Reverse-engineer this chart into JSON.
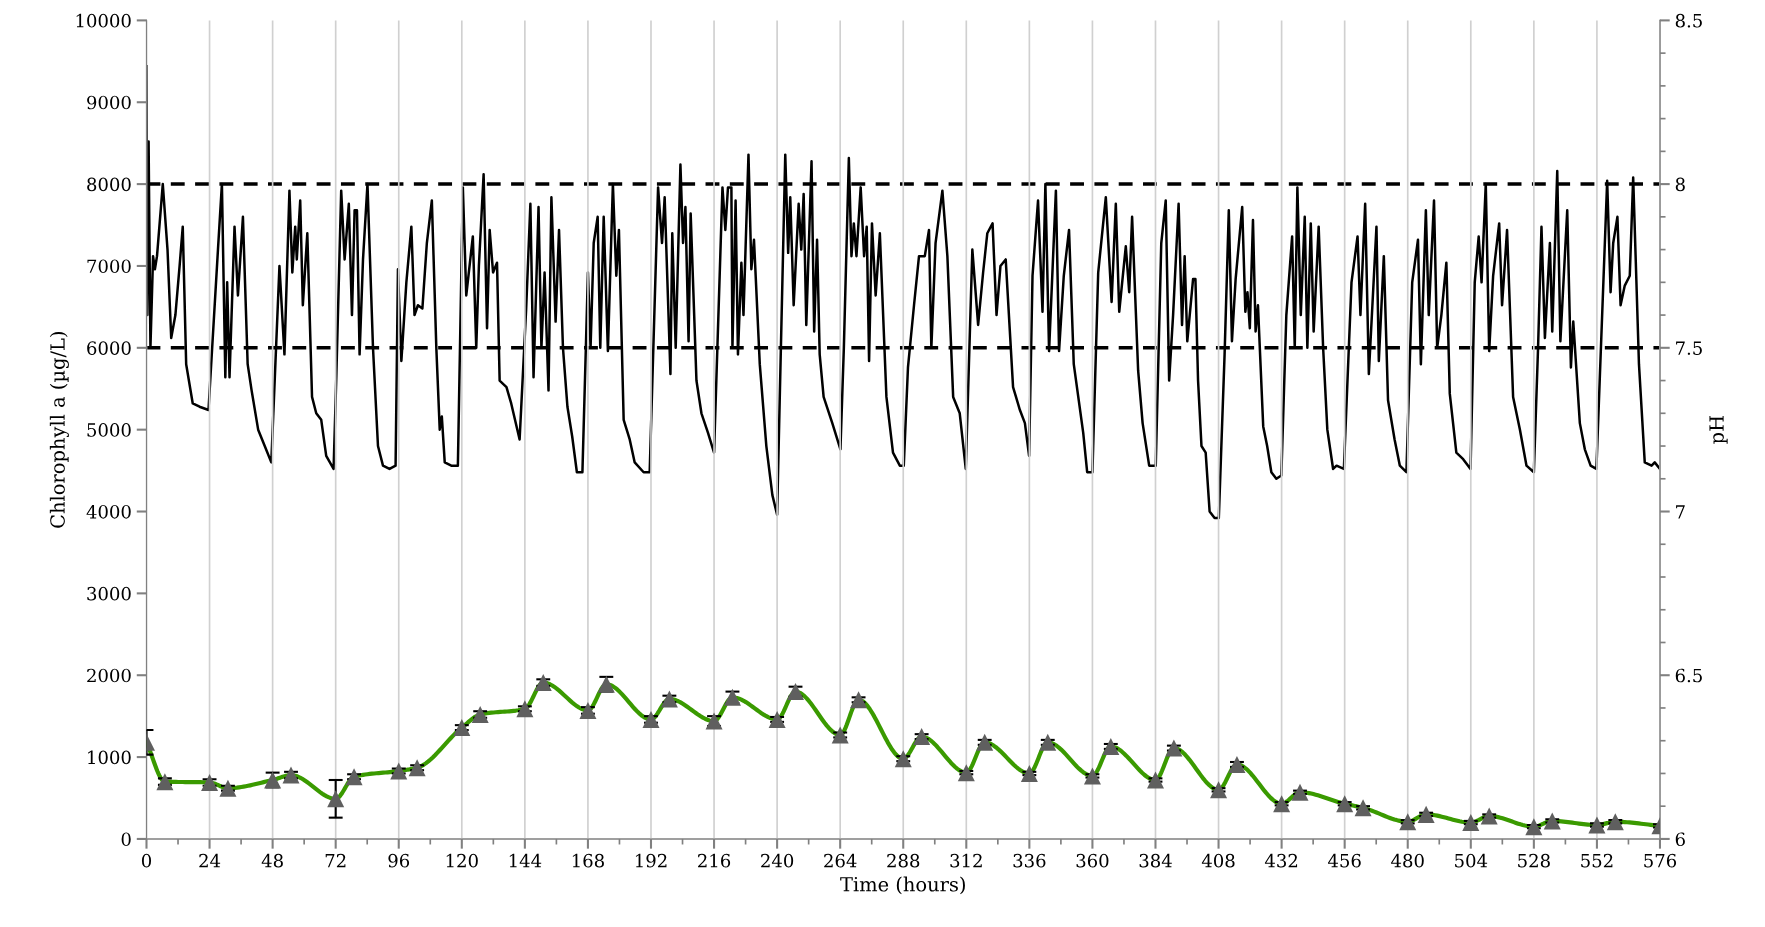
{
  "chart_data": {
    "type": "line",
    "xlabel": "Time (hours)",
    "ylabel": "Chlorophyll a (µg/L)",
    "y2label": "pH",
    "xlim": [
      0,
      576
    ],
    "xticks": [
      0,
      24,
      48,
      72,
      96,
      120,
      144,
      168,
      192,
      216,
      240,
      264,
      288,
      312,
      336,
      360,
      384,
      408,
      432,
      456,
      480,
      504,
      528,
      552,
      576
    ],
    "ylim": [
      0,
      10000
    ],
    "yticks": [
      0,
      1000,
      2000,
      3000,
      4000,
      5000,
      6000,
      7000,
      8000,
      9000,
      10000
    ],
    "y2lim": [
      6,
      8.5
    ],
    "y2ticks": [
      6,
      6.5,
      7,
      7.5,
      8,
      8.5
    ],
    "grid": "x",
    "ref_lines": [
      {
        "axis": "y2",
        "value": 7.5,
        "color": "#000000",
        "line_style": "dashed"
      },
      {
        "axis": "y2",
        "value": 8,
        "color": "#000000",
        "line_style": "dashed"
      }
    ],
    "series": [
      {
        "axis": "y",
        "color": "#3a9a00",
        "marker": "triangle",
        "line_style": "solid",
        "x": [
          0,
          7,
          24,
          31,
          48,
          55,
          72,
          79,
          96,
          103,
          120,
          127,
          144,
          151,
          168,
          175,
          192,
          199,
          216,
          223,
          240,
          247,
          264,
          271,
          288,
          295,
          312,
          319,
          336,
          343,
          360,
          367,
          384,
          391,
          408,
          415,
          432,
          439,
          456,
          463,
          480,
          487,
          504,
          511,
          528,
          535,
          552,
          559,
          576
        ],
        "values": [
          1180,
          700,
          690,
          620,
          720,
          780,
          490,
          760,
          830,
          870,
          1360,
          1520,
          1590,
          1910,
          1570,
          1890,
          1460,
          1710,
          1440,
          1730,
          1460,
          1800,
          1270,
          1700,
          980,
          1250,
          810,
          1180,
          800,
          1180,
          770,
          1130,
          720,
          1110,
          600,
          910,
          430,
          570,
          430,
          380,
          210,
          300,
          200,
          280,
          150,
          220,
          170,
          210,
          160
        ],
        "errors": [
          150,
          40,
          40,
          30,
          90,
          40,
          230,
          30,
          30,
          30,
          30,
          40,
          30,
          40,
          40,
          90,
          40,
          40,
          60,
          70,
          30,
          60,
          30,
          30,
          30,
          30,
          20,
          30,
          20,
          30,
          20,
          30,
          20,
          30,
          20,
          30,
          20,
          20,
          20,
          20,
          20,
          20,
          20,
          20,
          20,
          20,
          20,
          20,
          20
        ],
        "colors": [
          "#5f5f5f",
          "#5f5f5f",
          "#5f5f5f",
          "#5f5f5f",
          "#5f5f5f",
          "#5f5f5f",
          "#5f5f5f",
          "#5f5f5f",
          "#5f5f5f",
          "#5f5f5f",
          "#5f5f5f",
          "#5f5f5f",
          "#5f5f5f",
          "#5f5f5f",
          "#5f5f5f",
          "#5f5f5f",
          "#5f5f5f",
          "#5f5f5f",
          "#5f5f5f",
          "#5f5f5f",
          "#5f5f5f",
          "#5f5f5f",
          "#5f5f5f",
          "#5f5f5f",
          "#5f5f5f",
          "#5f5f5f",
          "#5f5f5f",
          "#5f5f5f",
          "#5f5f5f",
          "#5f5f5f",
          "#5f5f5f",
          "#5f5f5f",
          "#5f5f5f",
          "#5f5f5f",
          "#5f5f5f",
          "#5f5f5f",
          "#5f5f5f",
          "#5f5f5f",
          "#5f5f5f",
          "#5f5f5f",
          "#5f5f5f",
          "#5f5f5f",
          "#5f5f5f",
          "#5f5f5f",
          "#5f5f5f",
          "#5f5f5f",
          "#5f5f5f",
          "#5f5f5f",
          "#5f5f5f"
        ]
      },
      {
        "axis": "y2",
        "color": "#000000",
        "marker": "none",
        "line_style": "solid",
        "x": [
          0,
          0.3,
          0.8,
          1.5,
          2.5,
          3.2,
          4,
          6.2,
          8,
          9.4,
          11,
          12.6,
          13.8,
          15.1,
          17.6,
          20.2,
          23.6,
          27.2,
          28.7,
          30,
          30.7,
          31.6,
          33.5,
          34.8,
          36.7,
          38.5,
          40,
          42.5,
          45,
          47.5,
          50.6,
          52.5,
          54.4,
          55.5,
          56.6,
          57.2,
          58.5,
          59.5,
          61.2,
          63,
          64.6,
          66.5,
          68.4,
          71.2,
          72.2,
          74.1,
          75.4,
          77,
          78.2,
          79.2,
          80.1,
          81.1,
          82.4,
          84.1,
          86.2,
          88.1,
          90,
          92.5,
          94.8,
          95.7,
          97,
          98.9,
          100.8,
          102,
          103.3,
          105,
          106.7,
          108.6,
          110.3,
          111.6,
          112.4,
          113.5,
          116,
          118.5,
          120.4,
          121.7,
          124.2,
          125.5,
          126.5,
          128.3,
          129.6,
          130.6,
          131.9,
          133.4,
          134.4,
          137,
          138.8,
          142,
          144.5,
          146.1,
          147.3,
          149.2,
          150.3,
          151.5,
          153,
          154.1,
          155.7,
          157,
          158.5,
          160.2,
          162,
          163.8,
          165.9,
          168,
          169,
          170.2,
          171.7,
          172.7,
          174,
          175.6,
          177.5,
          178.8,
          179.8,
          181.6,
          183.9,
          185.8,
          189.2,
          191.5,
          194.7,
          196.2,
          197.2,
          199.4,
          200.1,
          201.4,
          203.2,
          204.2,
          205.1,
          206.3,
          207.1,
          209.3,
          211.2,
          213.7,
          216,
          219.2,
          220.3,
          221.3,
          222.6,
          223,
          224.2,
          225.1,
          226.4,
          227.2,
          229.1,
          230.2,
          231.2,
          233.4,
          235.9,
          238.2,
          240,
          243.1,
          244.2,
          245,
          246.3,
          248.2,
          249.2,
          250.1,
          251.1,
          253.1,
          254.1,
          255.2,
          256.2,
          257.7,
          261,
          264.1,
          265.4,
          267.3,
          268.3,
          269.2,
          270.2,
          271.8,
          273.1,
          274.1,
          275,
          276.1,
          277.5,
          279.1,
          281.6,
          284.1,
          286.7,
          288.2,
          289.8,
          292.1,
          294,
          296.2,
          297.8,
          298.7,
          300.3,
          302.9,
          304.8,
          307,
          309.5,
          311.8,
          314.3,
          316.5,
          318.4,
          320,
          322,
          323.5,
          325,
          327,
          329.8,
          332.4,
          334.3,
          335.9,
          337.2,
          339.3,
          341,
          342.1,
          343.5,
          346.1,
          347.3,
          349.1,
          351.1,
          352.9,
          356.5,
          358,
          360,
          362.2,
          365.1,
          367.3,
          368.9,
          370.2,
          372.7,
          374,
          375.1,
          377.4,
          379.1,
          381.6,
          384.1,
          386.2,
          387.9,
          389.2,
          390.7,
          392.8,
          394.1,
          395.1,
          396.1,
          398.3,
          399.2,
          400.2,
          401.5,
          403.1,
          404.6,
          406.5,
          408.1,
          410.3,
          411.9,
          413.1,
          414.5,
          417,
          418.2,
          419,
          419.9,
          421.1,
          422.1,
          423,
          425,
          426.5,
          428.1,
          430,
          431.9,
          433.8,
          436,
          437,
          438,
          439.3,
          440.8,
          441.8,
          443.1,
          444.2,
          446.1,
          447.8,
          449.4,
          451.6,
          452.9,
          455.7,
          458.6,
          460.9,
          462,
          463.8,
          465.2,
          468.1,
          469,
          470.9,
          472.5,
          475,
          477,
          479.5,
          481.7,
          483.9,
          485,
          486.9,
          488,
          490,
          491.2,
          492.8,
          494.7,
          496,
          498.5,
          501.1,
          503.9,
          505.5,
          507,
          508.1,
          509.7,
          511,
          512.5,
          514.8,
          515.9,
          517.8,
          520.1,
          522.7,
          525.2,
          528,
          529.6,
          530.9,
          532.2,
          534.1,
          535,
          536.9,
          538.1,
          540.7,
          542.1,
          543,
          545.5,
          547.4,
          549.6,
          551.8,
          555.9,
          557.2,
          558.2,
          559.8,
          561,
          562.6,
          564.5,
          565.8,
          568,
          570.2,
          572.8,
          574,
          576
        ],
        "values": [
          8.36,
          7.6,
          8.13,
          7.5,
          7.78,
          7.74,
          7.78,
          8.0,
          7.8,
          7.53,
          7.6,
          7.75,
          7.87,
          7.45,
          7.33,
          7.32,
          7.31,
          7.8,
          8.0,
          7.41,
          7.7,
          7.41,
          7.87,
          7.66,
          7.9,
          7.45,
          7.37,
          7.25,
          7.2,
          7.15,
          7.75,
          7.48,
          7.98,
          7.73,
          7.87,
          7.77,
          7.95,
          7.63,
          7.85,
          7.35,
          7.3,
          7.28,
          7.17,
          7.13,
          7.4,
          7.98,
          7.77,
          7.94,
          7.6,
          7.92,
          7.92,
          7.48,
          7.77,
          8.0,
          7.5,
          7.2,
          7.14,
          7.13,
          7.14,
          7.74,
          7.46,
          7.7,
          7.87,
          7.6,
          7.63,
          7.62,
          7.82,
          7.95,
          7.5,
          7.25,
          7.29,
          7.15,
          7.14,
          7.14,
          7.99,
          7.66,
          7.84,
          7.5,
          7.75,
          8.03,
          7.56,
          7.86,
          7.73,
          7.76,
          7.4,
          7.38,
          7.33,
          7.22,
          7.62,
          7.94,
          7.41,
          7.93,
          7.5,
          7.73,
          7.37,
          7.96,
          7.58,
          7.86,
          7.5,
          7.32,
          7.23,
          7.12,
          7.12,
          7.73,
          7.5,
          7.82,
          7.9,
          7.5,
          7.9,
          7.49,
          8.0,
          7.72,
          7.86,
          7.28,
          7.22,
          7.15,
          7.12,
          7.12,
          7.99,
          7.82,
          7.96,
          7.42,
          7.85,
          7.5,
          8.06,
          7.82,
          7.93,
          7.52,
          7.91,
          7.4,
          7.3,
          7.24,
          7.18,
          7.99,
          7.86,
          7.99,
          7.99,
          7.5,
          7.95,
          7.48,
          7.76,
          7.6,
          8.09,
          7.74,
          7.83,
          7.45,
          7.2,
          7.05,
          6.99,
          8.09,
          7.79,
          7.96,
          7.63,
          7.94,
          7.8,
          7.97,
          7.57,
          8.07,
          7.55,
          7.83,
          7.48,
          7.35,
          7.27,
          7.19,
          7.5,
          8.08,
          7.78,
          7.88,
          7.78,
          7.99,
          7.78,
          7.87,
          7.46,
          7.88,
          7.66,
          7.85,
          7.35,
          7.18,
          7.14,
          7.14,
          7.44,
          7.63,
          7.78,
          7.78,
          7.86,
          7.5,
          7.82,
          7.98,
          7.78,
          7.35,
          7.3,
          7.13,
          7.8,
          7.57,
          7.73,
          7.85,
          7.88,
          7.6,
          7.75,
          7.77,
          7.38,
          7.31,
          7.27,
          7.17,
          7.72,
          7.95,
          7.61,
          8.0,
          7.49,
          7.98,
          7.49,
          7.72,
          7.86,
          7.45,
          7.24,
          7.12,
          7.12,
          7.73,
          7.96,
          7.64,
          7.94,
          7.61,
          7.81,
          7.67,
          7.9,
          7.43,
          7.27,
          7.14,
          7.14,
          7.82,
          7.95,
          7.4,
          7.6,
          7.94,
          7.57,
          7.78,
          7.52,
          7.71,
          7.71,
          7.4,
          7.2,
          7.18,
          7.0,
          6.98,
          6.98,
          7.48,
          7.92,
          7.52,
          7.71,
          7.93,
          7.61,
          7.67,
          7.56,
          7.89,
          7.55,
          7.63,
          7.26,
          7.2,
          7.12,
          7.1,
          7.11,
          7.6,
          7.84,
          7.5,
          7.99,
          7.6,
          7.9,
          7.5,
          7.88,
          7.55,
          7.87,
          7.5,
          7.25,
          7.13,
          7.14,
          7.13,
          7.7,
          7.84,
          7.6,
          7.94,
          7.42,
          7.87,
          7.46,
          7.78,
          7.34,
          7.22,
          7.14,
          7.12,
          7.7,
          7.83,
          7.45,
          7.92,
          7.6,
          7.95,
          7.5,
          7.6,
          7.76,
          7.36,
          7.18,
          7.16,
          7.13,
          7.7,
          7.84,
          7.7,
          8.0,
          7.49,
          7.72,
          7.88,
          7.63,
          7.86,
          7.35,
          7.25,
          7.14,
          7.12,
          7.5,
          7.87,
          7.53,
          7.82,
          7.55,
          8.04,
          7.52,
          7.92,
          7.44,
          7.58,
          7.27,
          7.19,
          7.14,
          7.13,
          8.01,
          7.67,
          7.82,
          7.9,
          7.63,
          7.69,
          7.72,
          8.02,
          7.45,
          7.15,
          7.14,
          7.15,
          7.13
        ]
      }
    ]
  }
}
